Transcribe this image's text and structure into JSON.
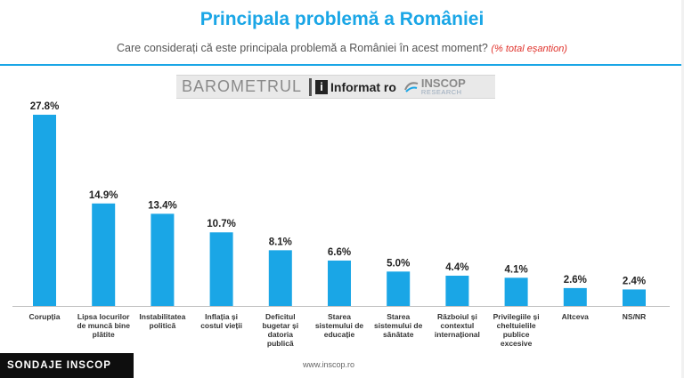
{
  "header": {
    "title": "Principala problemă a României",
    "subtitle": "Care considerați că este principala problemă a României în acest moment?",
    "subtitle_note": "(% total eșantion)"
  },
  "banner": {
    "barometer_label": "BAROMETRUL",
    "informat_mark": "i",
    "informat_label": "Informat ro",
    "inscop_label": "INSCOP",
    "inscop_sublabel": "RESEARCH"
  },
  "footer": {
    "brand": "SONDAJE INSCOP",
    "url": "www.inscop.ro"
  },
  "colors": {
    "bar": "#1aa6e6",
    "title": "#1aa6e6",
    "note": "#e0322b",
    "footer_bg": "#0e0e0e"
  },
  "chart_data": {
    "type": "bar",
    "categories": [
      [
        "Corupția"
      ],
      [
        "Lipsa locurilor",
        "de muncă bine",
        "plătite"
      ],
      [
        "Instabilitatea",
        "politică"
      ],
      [
        "Inflația și",
        "costul vieții"
      ],
      [
        "Deficitul",
        "bugetar și",
        "datoria",
        "publică"
      ],
      [
        "Starea",
        "sistemului de",
        "educație"
      ],
      [
        "Starea",
        "sistemului de",
        "sănătate"
      ],
      [
        "Războiul și",
        "contextul",
        "internațional"
      ],
      [
        "Privilegiile și",
        "cheltuielile",
        "publice",
        "excesive"
      ],
      [
        "Altceva"
      ],
      [
        "NS/NR"
      ]
    ],
    "values": [
      27.8,
      14.9,
      13.4,
      10.7,
      8.1,
      6.6,
      5.0,
      4.4,
      4.1,
      2.6,
      2.4
    ],
    "value_labels": [
      "27.8%",
      "14.9%",
      "13.4%",
      "10.7%",
      "8.1%",
      "6.6%",
      "5.0%",
      "4.4%",
      "4.1%",
      "2.6%",
      "2.4%"
    ],
    "ylim": [
      0,
      30
    ],
    "grid": false,
    "legend": "none"
  }
}
